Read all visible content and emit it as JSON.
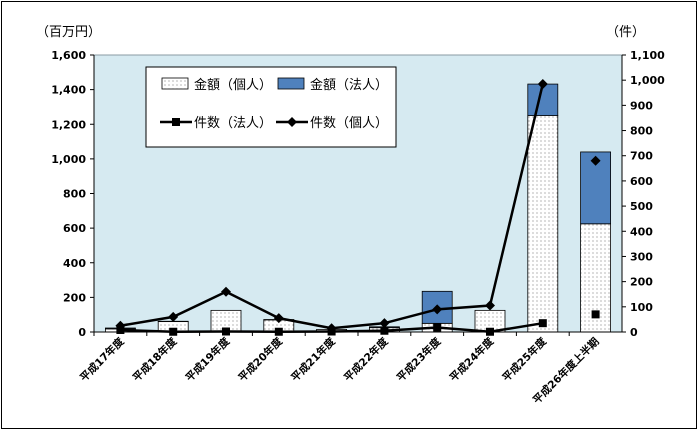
{
  "chart_data": {
    "type": "bar",
    "title": "",
    "left_axis_unit": "（百万円）",
    "right_axis_unit": "（件）",
    "categories": [
      "平成17年度",
      "平成18年度",
      "平成19年度",
      "平成20年度",
      "平成21年度",
      "平成22年度",
      "平成23年度",
      "平成24年度",
      "平成25年度",
      "平成26年度上半期"
    ],
    "left_ylim": [
      0,
      1600
    ],
    "left_ticks": [
      "0",
      "200",
      "400",
      "600",
      "800",
      "1,000",
      "1,200",
      "1,400",
      "1,600"
    ],
    "right_ylim": [
      0,
      1100
    ],
    "right_ticks": [
      "0",
      "100",
      "200",
      "300",
      "400",
      "500",
      "600",
      "700",
      "800",
      "900",
      "1,000",
      "1,100"
    ],
    "grid": false,
    "legend_position": "top-left",
    "series": [
      {
        "name": "金額（個人）",
        "kind": "stacked-bar",
        "axis": "left",
        "color": "#ffffff",
        "pattern": "dots",
        "values": [
          18,
          60,
          125,
          70,
          15,
          25,
          50,
          125,
          1250,
          625
        ]
      },
      {
        "name": "金額（法人）",
        "kind": "stacked-bar",
        "axis": "left",
        "color": "#4f81bd",
        "values": [
          5,
          2,
          0,
          2,
          0,
          5,
          185,
          0,
          182,
          415
        ]
      },
      {
        "name": "件数（法人）",
        "kind": "line",
        "axis": "right",
        "marker": "square",
        "color": "#000000",
        "values": [
          8,
          1,
          2,
          1,
          2,
          5,
          18,
          1,
          35,
          70
        ]
      },
      {
        "name": "件数（個人）",
        "kind": "line",
        "axis": "right",
        "marker": "diamond",
        "color": "#000000",
        "values": [
          25,
          60,
          160,
          55,
          15,
          35,
          90,
          105,
          985,
          680
        ]
      }
    ]
  }
}
